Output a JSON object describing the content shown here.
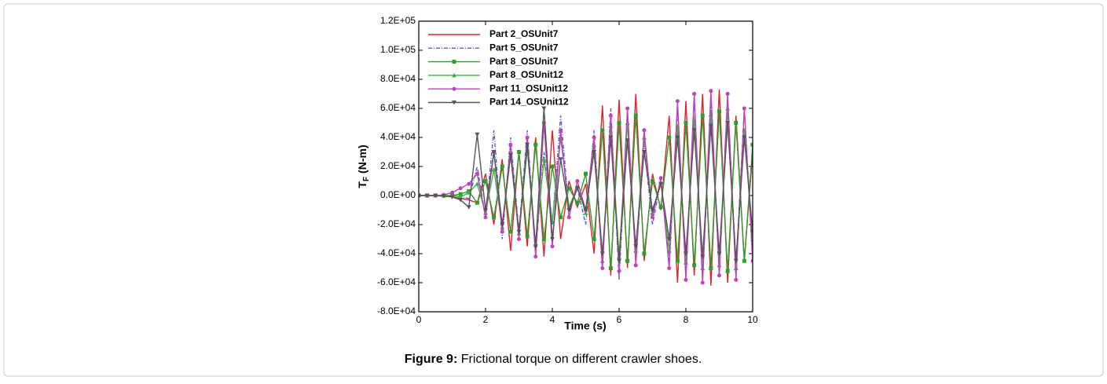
{
  "chart_data": {
    "type": "line",
    "xlabel": "Time (s)",
    "ylabel": {
      "main": "T",
      "sub": "F",
      "unit": "(N-m)"
    },
    "caption": {
      "label": "Figure 9:",
      "text": "Frictional torque on different crawler shoes."
    },
    "xlim": [
      0,
      10
    ],
    "xticks": [
      0,
      2,
      4,
      6,
      8,
      10
    ],
    "ylim": [
      -80000,
      120000
    ],
    "yticks": [
      {
        "value": -80000,
        "label": "-8.0E+04"
      },
      {
        "value": -60000,
        "label": "-6.0E+04"
      },
      {
        "value": -40000,
        "label": "-4.0E+04"
      },
      {
        "value": -20000,
        "label": "-2.0E+04"
      },
      {
        "value": 0,
        "label": "0.0E+00"
      },
      {
        "value": 20000,
        "label": "2.0E+04"
      },
      {
        "value": 40000,
        "label": "4.0E+04"
      },
      {
        "value": 60000,
        "label": "6.0E+04"
      },
      {
        "value": 80000,
        "label": "8.0E+04"
      },
      {
        "value": 100000,
        "label": "1.0E+05"
      },
      {
        "value": 120000,
        "label": "1.2E+05"
      }
    ],
    "legend": "top-left",
    "x": [
      0,
      0.25,
      0.5,
      0.75,
      1,
      1.25,
      1.5,
      1.75,
      2,
      2.25,
      2.5,
      2.75,
      3,
      3.25,
      3.5,
      3.75,
      4,
      4.25,
      4.5,
      4.75,
      5,
      5.25,
      5.5,
      5.75,
      6,
      6.25,
      6.5,
      6.75,
      7,
      7.25,
      7.5,
      7.75,
      8,
      8.25,
      8.5,
      8.75,
      9,
      9.25,
      9.5,
      9.75,
      10
    ],
    "series": [
      {
        "name": "Part 2_OSUnit7",
        "color": "#e0202a",
        "dash": false,
        "marker": "none",
        "values": [
          0,
          0,
          0,
          0,
          -1000,
          -2000,
          -3000,
          -5000,
          15000,
          -20000,
          25000,
          -38000,
          30000,
          -35000,
          40000,
          -42000,
          45000,
          -30000,
          10000,
          -8000,
          8000,
          -40000,
          62000,
          -55000,
          66000,
          -50000,
          70000,
          -45000,
          15000,
          -10000,
          55000,
          -60000,
          65000,
          -55000,
          70000,
          -62000,
          73000,
          -60000,
          55000,
          -45000,
          30000
        ]
      },
      {
        "name": "Part 5_OSUnit7",
        "color": "#5a5ad0",
        "dash": true,
        "marker": "none",
        "values": [
          0,
          0,
          0,
          0,
          0,
          -1000,
          -2000,
          20000,
          -15000,
          45000,
          -30000,
          40000,
          -25000,
          45000,
          -40000,
          30000,
          -20000,
          55000,
          -10000,
          5000,
          -20000,
          45000,
          -50000,
          60000,
          -58000,
          55000,
          -45000,
          35000,
          -20000,
          10000,
          -45000,
          60000,
          -55000,
          65000,
          -58000,
          62000,
          -55000,
          68000,
          -50000,
          60000,
          -40000
        ]
      },
      {
        "name": "Part 8_OSUnit7",
        "color": "#2ca02c",
        "dash": false,
        "marker": "square",
        "values": [
          0,
          0,
          0,
          0,
          0,
          1000,
          3000,
          -5000,
          10000,
          -15000,
          20000,
          -25000,
          30000,
          -28000,
          35000,
          -30000,
          20000,
          -15000,
          5000,
          -5000,
          15000,
          -30000,
          45000,
          -50000,
          50000,
          -45000,
          55000,
          -40000,
          10000,
          -8000,
          40000,
          -45000,
          50000,
          -48000,
          55000,
          -50000,
          58000,
          -52000,
          50000,
          -45000,
          35000
        ]
      },
      {
        "name": "Part 8_OSUnit12",
        "color": "#3cb43c",
        "dash": false,
        "marker": "triangle",
        "values": [
          0,
          0,
          0,
          0,
          0,
          -1000,
          2000,
          8000,
          -12000,
          18000,
          -22000,
          28000,
          -26000,
          32000,
          -34000,
          25000,
          -18000,
          40000,
          -8000,
          6000,
          -12000,
          35000,
          -45000,
          48000,
          -42000,
          50000,
          -38000,
          40000,
          -12000,
          9000,
          -38000,
          48000,
          -46000,
          52000,
          -50000,
          56000,
          -48000,
          60000,
          -50000,
          45000,
          -30000
        ]
      },
      {
        "name": "Part 11_OSUnit12",
        "color": "#c040c0",
        "dash": false,
        "marker": "circle",
        "values": [
          0,
          0,
          0,
          500,
          2000,
          5000,
          8000,
          15000,
          -15000,
          30000,
          -25000,
          35000,
          -30000,
          40000,
          -42000,
          50000,
          -35000,
          45000,
          -15000,
          10000,
          -10000,
          40000,
          -50000,
          55000,
          -52000,
          60000,
          -48000,
          45000,
          -15000,
          12000,
          -50000,
          65000,
          -58000,
          70000,
          -60000,
          72000,
          -55000,
          70000,
          -58000,
          60000,
          -45000
        ]
      },
      {
        "name": "Part 14_OSUnit12",
        "color": "#555555",
        "dash": false,
        "marker": "triangle-down",
        "values": [
          0,
          0,
          0,
          -500,
          -1000,
          -3000,
          -8000,
          42000,
          -10000,
          30000,
          -20000,
          28000,
          -25000,
          35000,
          -35000,
          60000,
          -30000,
          25000,
          -10000,
          5000,
          -10000,
          30000,
          -40000,
          40000,
          -45000,
          38000,
          -35000,
          30000,
          -10000,
          8000,
          -30000,
          40000,
          -40000,
          45000,
          -42000,
          48000,
          -40000,
          50000,
          -45000,
          40000,
          -25000
        ]
      }
    ]
  }
}
